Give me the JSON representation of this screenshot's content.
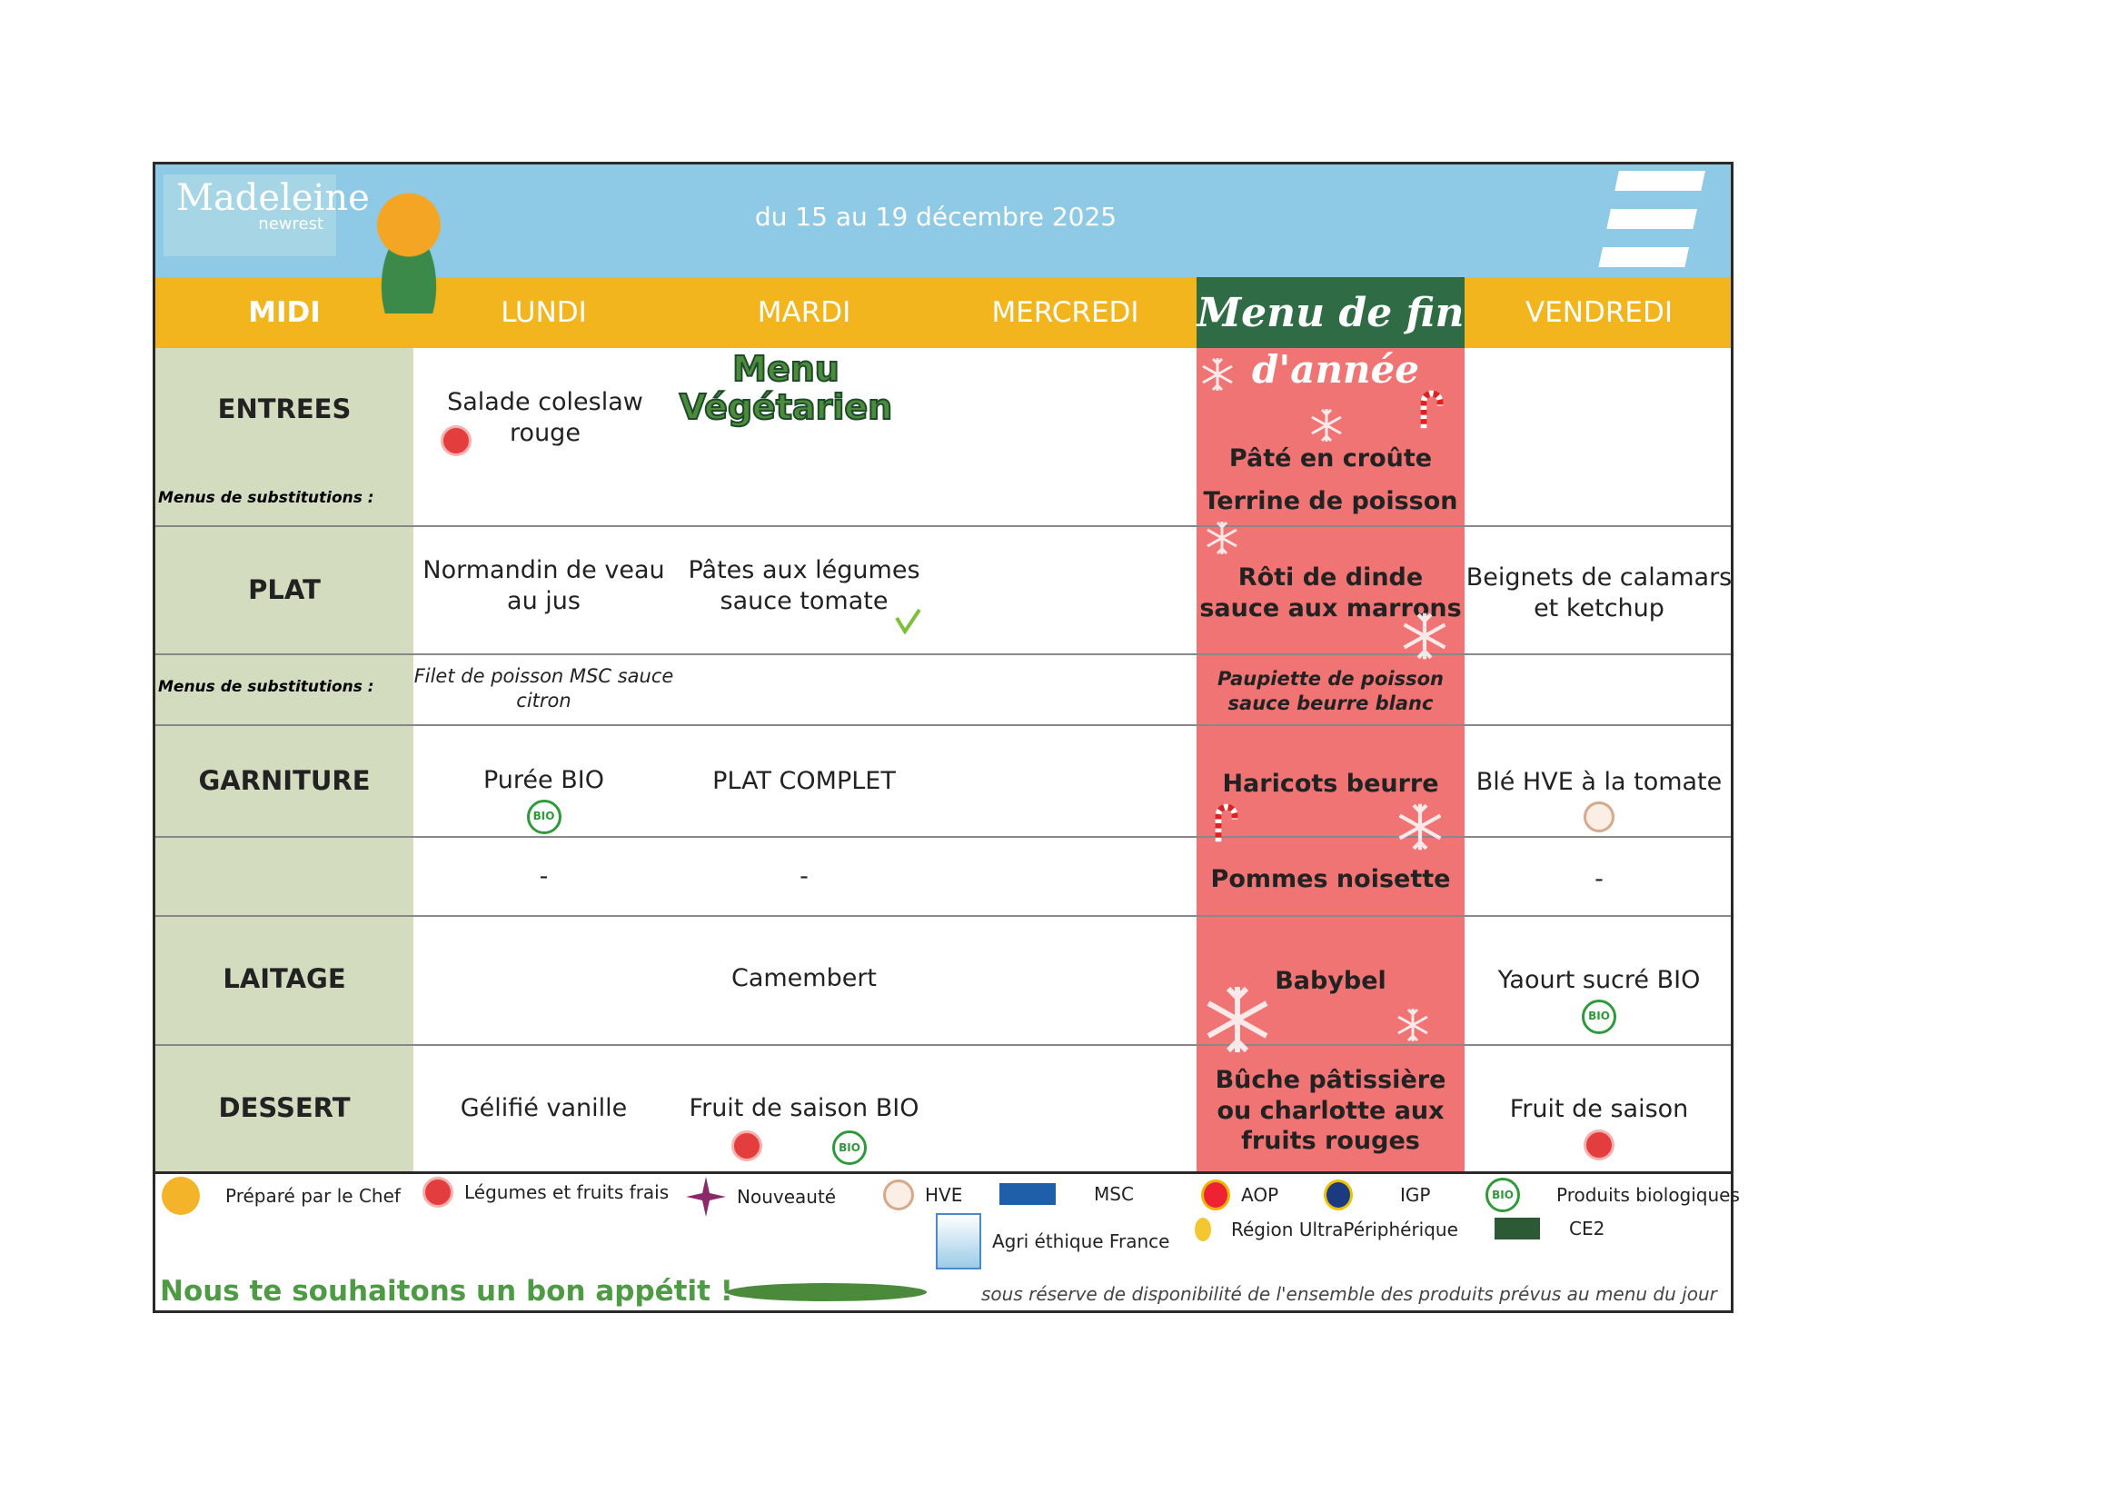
{
  "header": {
    "logo": "Madeleine",
    "logo_sub": "newrest",
    "title": "du 15 au 19 décembre 2025"
  },
  "days": {
    "midi": "MIDI",
    "lundi": "LUNDI",
    "mardi": "MARDI",
    "mercredi": "MERCREDI",
    "jeudi": "Menu de fin",
    "jeudi_2": "d'année",
    "vendredi": "VENDREDI"
  },
  "banner": "Menu Végétarien",
  "rows": {
    "entrees": "ENTREES",
    "sub": "Menus de substitutions :",
    "plat": "PLAT",
    "garniture": "GARNITURE",
    "laitage": "LAITAGE",
    "dessert": "DESSERT"
  },
  "lundi": {
    "entree": "Salade coleslaw rouge",
    "plat": "Normandin de veau au jus",
    "plat_sub": "Filet de poisson MSC sauce citron",
    "garniture": "Purée BIO",
    "garniture2": "-",
    "laitage": "",
    "dessert": "Gélifié vanille"
  },
  "mardi": {
    "plat": "Pâtes aux légumes sauce tomate",
    "garniture": "PLAT COMPLET",
    "garniture2": "-",
    "laitage": "Camembert",
    "dessert": "Fruit de saison BIO"
  },
  "jeudi": {
    "entree1": "Pâté en croûte",
    "entree2": "Terrine de poisson",
    "plat": "Rôti de dinde sauce aux marrons",
    "plat_sub": "Paupiette de poisson sauce beurre blanc",
    "garniture": "Haricots beurre",
    "garniture2": "Pommes noisette",
    "laitage": "Babybel",
    "dessert": "Bûche pâtissière ou charlotte aux fruits rouges"
  },
  "vendredi": {
    "plat": "Beignets de calamars et ketchup",
    "garniture": "Blé HVE à la tomate",
    "garniture2": "-",
    "laitage": "Yaourt sucré BIO",
    "dessert": "Fruit de saison"
  },
  "legend": {
    "chef": "Préparé par le Chef",
    "fresh": "Légumes et fruits frais",
    "new": "Nouveauté",
    "hve": "HVE",
    "msc": "MSC",
    "aop": "AOP",
    "igp": "IGP",
    "bio": "Produits biologiques",
    "agri": "Agri éthique France",
    "rup": "Région UltraPériphérique",
    "ce2": "CE2",
    "bio_badge": "BIO"
  },
  "footer": {
    "wish": "Nous te souhaitons un bon appétit !",
    "note": "sous réserve de disponibilité de l'ensemble des produits prévus au menu du jour"
  },
  "colors": {
    "header": "#8ecae6",
    "days": "#f2b51e",
    "label_col": "#d4dcc0",
    "holiday": "#f07474",
    "holiday_hdr": "#2f6b45"
  }
}
